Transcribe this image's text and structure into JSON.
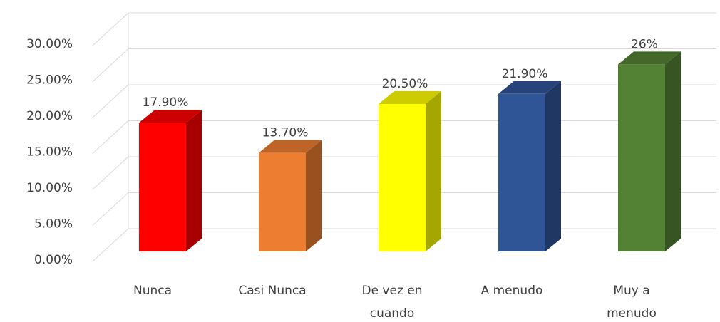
{
  "chart_data": {
    "type": "bar3d",
    "categories": [
      "Nunca",
      "Casi Nunca",
      "De vez en cuando",
      "A menudo",
      "Muy a menudo"
    ],
    "values": [
      17.9,
      13.7,
      20.5,
      21.9,
      26
    ],
    "value_labels": [
      "17.90%",
      "13.70%",
      "20.50%",
      "21.90%",
      "26%"
    ],
    "colors": [
      "#ff0000",
      "#ed7d31",
      "#ffff00",
      "#2f5597",
      "#548235"
    ],
    "ylim": [
      0,
      30
    ],
    "yticks": [
      {
        "value": 0,
        "label": "0.00%"
      },
      {
        "value": 5,
        "label": "5.00%"
      },
      {
        "value": 10,
        "label": "10.00%"
      },
      {
        "value": 15,
        "label": "15.00%"
      },
      {
        "value": 20,
        "label": "20.00%"
      },
      {
        "value": 25,
        "label": "25.00%"
      },
      {
        "value": 30,
        "label": "30.00%"
      }
    ],
    "grid": true
  }
}
